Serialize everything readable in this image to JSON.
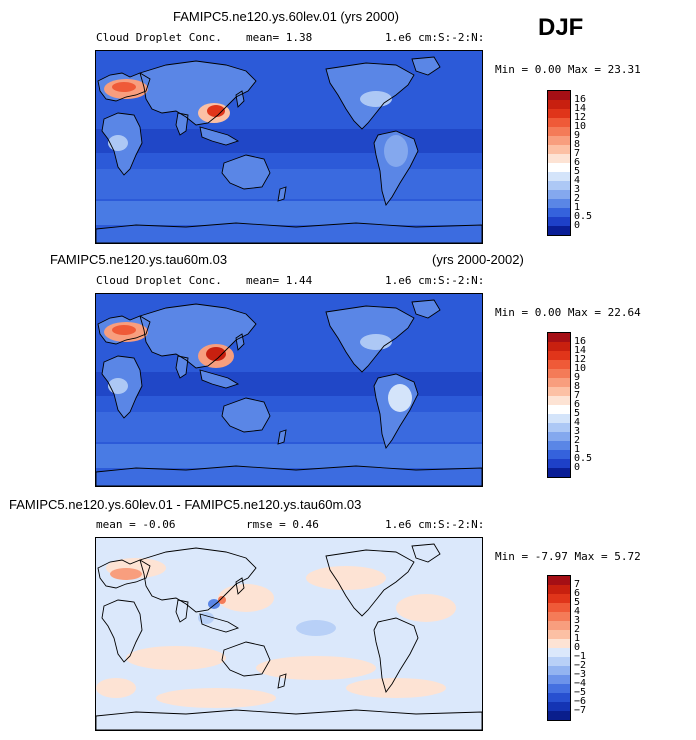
{
  "season": "DJF",
  "panels": [
    {
      "id": "p1",
      "title": "FAMIPC5.ne120.ys.60lev.01 (yrs 2000)",
      "title2": "",
      "variable": "Cloud Droplet Conc.",
      "stat1": "mean=    1.38",
      "units": "1.e6 cm:S:-2:N:",
      "minmax": "Min =   0.00 Max =  23.31",
      "type": "field"
    },
    {
      "id": "p2",
      "title": "FAMIPC5.ne120.ys.tau60m.03",
      "title2": "(yrs 2000-2002)",
      "variable": "Cloud Droplet Conc.",
      "stat1": "mean=    1.44",
      "units": "1.e6 cm:S:-2:N:",
      "minmax": "Min =   0.00 Max =  22.64",
      "type": "field"
    },
    {
      "id": "p3",
      "title": "FAMIPC5.ne120.ys.60lev.01 - FAMIPC5.ne120.ys.tau60m.03",
      "title2": "",
      "variable": "mean =  -0.06",
      "stat1": "rmse =   0.46",
      "units": "1.e6 cm:S:-2:N:",
      "minmax": "Min =  -7.97 Max =   5.72",
      "type": "diff"
    }
  ],
  "colorbar_field": {
    "labels": [
      "16",
      "14",
      "12",
      "10",
      "9",
      "8",
      "7",
      "6",
      "5",
      "4",
      "3",
      "2",
      "1",
      "0.5",
      "0"
    ],
    "colors": [
      "#a50f15",
      "#c8200f",
      "#e0351a",
      "#ef5a38",
      "#f47b58",
      "#f89e7e",
      "#fcc0a4",
      "#fde3d4",
      "#ffffff",
      "#d4e4fa",
      "#adc8f5",
      "#84a8ee",
      "#5a86e6",
      "#3562dc",
      "#1e40c8",
      "#0a1e96"
    ]
  },
  "colorbar_diff": {
    "labels": [
      "7",
      "6",
      "5",
      "4",
      "3",
      "2",
      "1",
      "0",
      "−1",
      "−2",
      "−3",
      "−4",
      "−5",
      "−6",
      "−7"
    ],
    "colors": [
      "#a50f15",
      "#c8200f",
      "#e0351a",
      "#ef5a38",
      "#f47b58",
      "#f89e7e",
      "#fcc0a4",
      "#fde3d4",
      "#dbe8fb",
      "#b8d0f7",
      "#93b4f1",
      "#6c93ea",
      "#4470e0",
      "#2750d0",
      "#1434b4",
      "#0a1e8c"
    ]
  }
}
